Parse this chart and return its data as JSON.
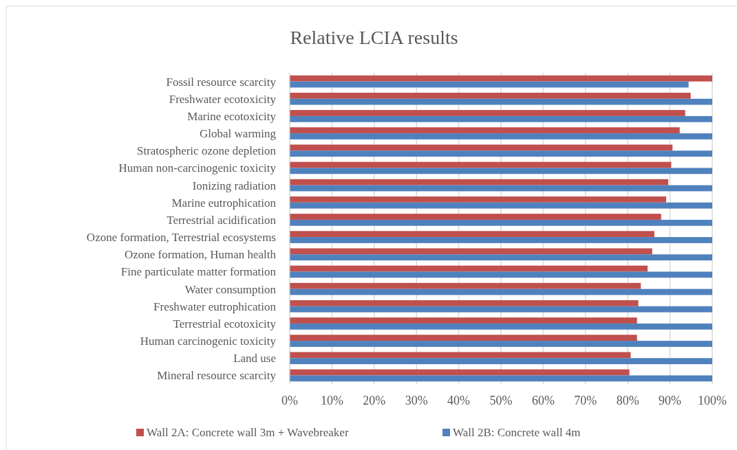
{
  "chart_data": {
    "type": "bar",
    "orientation": "horizontal",
    "title": "Relative LCIA results",
    "categories": [
      "Fossil resource scarcity",
      "Freshwater ecotoxicity",
      "Marine ecotoxicity",
      "Global warming",
      "Stratospheric ozone depletion",
      "Human non-carcinogenic toxicity",
      "Ionizing radiation",
      "Marine eutrophication",
      "Terrestrial acidification",
      "Ozone formation, Terrestrial ecosystems",
      "Ozone formation, Human health",
      "Fine particulate matter formation",
      "Water consumption",
      "Freshwater eutrophication",
      "Terrestrial ecotoxicity",
      "Human carcinogenic toxicity",
      "Land use",
      "Mineral resource scarcity"
    ],
    "series": [
      {
        "name": "Wall 2A: Concrete wall 3m + Wavebreaker",
        "color": "#c0504d",
        "values": [
          100,
          94.9,
          93.6,
          92.3,
          90.6,
          90.3,
          89.6,
          89.1,
          87.9,
          86.3,
          85.8,
          84.7,
          83.1,
          82.5,
          82.2,
          82.2,
          80.7,
          80.4
        ]
      },
      {
        "name": "Wall 2B: Concrete wall 4m",
        "color": "#4f81bd",
        "values": [
          94.4,
          100,
          100,
          100,
          100,
          100,
          100,
          100,
          100,
          100,
          100,
          100,
          100,
          100,
          100,
          100,
          100,
          100
        ]
      }
    ],
    "xlim": [
      0,
      100
    ],
    "xticks": [
      {
        "value": 0,
        "label": "0%"
      },
      {
        "value": 10,
        "label": "10%"
      },
      {
        "value": 20,
        "label": "20%"
      },
      {
        "value": 30,
        "label": "30%"
      },
      {
        "value": 40,
        "label": "40%"
      },
      {
        "value": 50,
        "label": "50%"
      },
      {
        "value": 60,
        "label": "60%"
      },
      {
        "value": 70,
        "label": "70%"
      },
      {
        "value": 80,
        "label": "80%"
      },
      {
        "value": 90,
        "label": "90%"
      },
      {
        "value": 100,
        "label": "100%"
      }
    ],
    "grid": "x",
    "legend": "bottom"
  }
}
